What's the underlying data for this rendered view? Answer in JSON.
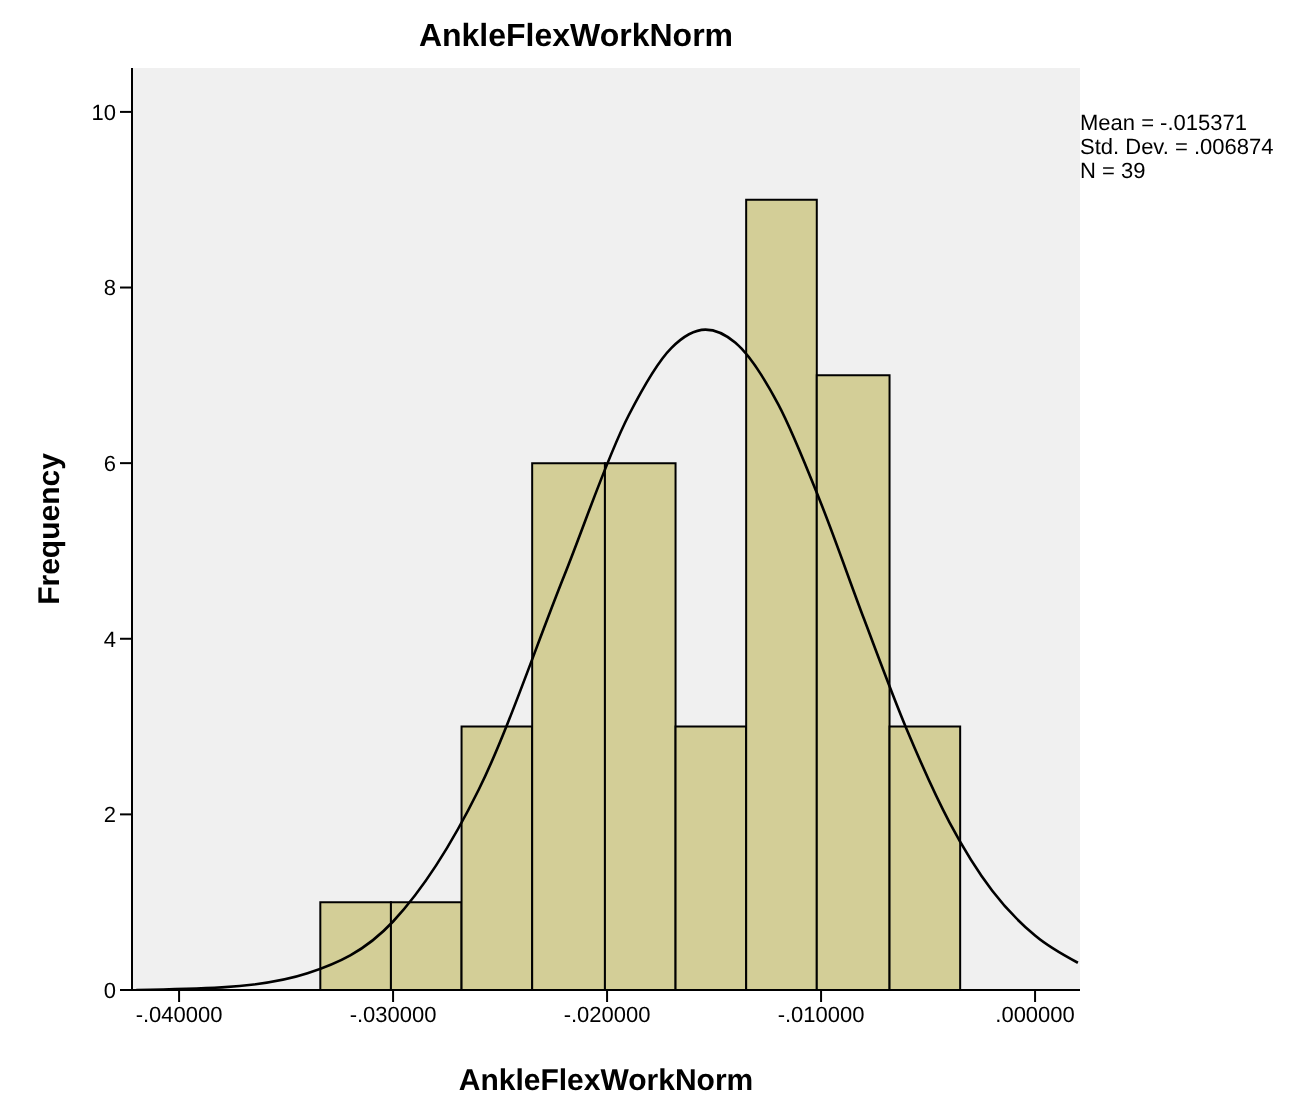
{
  "chart_data": {
    "type": "histogram",
    "title": "AnkleFlexWorkNorm",
    "xlabel": "AnkleFlexWorkNorm",
    "ylabel": "Frequency",
    "bins": [
      -0.0334,
      -0.0301,
      -0.0268,
      -0.0235,
      -0.0201,
      -0.0168,
      -0.0135,
      -0.0102,
      -0.0068,
      -0.0035
    ],
    "values": [
      1,
      1,
      3,
      6,
      6,
      3,
      9,
      7,
      3
    ],
    "color": "#d3ce97",
    "series": [
      {
        "type": "line",
        "color": "#000000",
        "x": [
          -0.042,
          -0.038,
          -0.034,
          -0.03,
          -0.026,
          -0.022,
          -0.019,
          -0.017,
          -0.0154,
          -0.014,
          -0.012,
          -0.01,
          -0.008,
          -0.006,
          -0.004,
          -0.002,
          0,
          0.002
        ],
        "values": [
          0,
          0.03,
          0.19,
          0.78,
          2.28,
          4.72,
          6.54,
          7.31,
          7.52,
          7.37,
          6.67,
          5.54,
          4.23,
          2.97,
          1.91,
          1.13,
          0.62,
          0.31
        ]
      }
    ],
    "marker": "none",
    "xlim": [
      -0.0422,
      0.0021
    ],
    "xticks": [
      {
        "value": -0.04,
        "label": "-.040000"
      },
      {
        "value": -0.03,
        "label": "-.030000"
      },
      {
        "value": -0.02,
        "label": "-.020000"
      },
      {
        "value": -0.01,
        "label": "-.010000"
      },
      {
        "value": 0,
        "label": ".000000"
      }
    ],
    "ylim": [
      0,
      10.5
    ],
    "yticks": [
      0,
      2,
      4,
      6,
      8,
      10
    ],
    "grid": false,
    "annotations": [
      "Mean = -.015371",
      "Std. Dev. = .006874",
      "N = 39"
    ]
  }
}
